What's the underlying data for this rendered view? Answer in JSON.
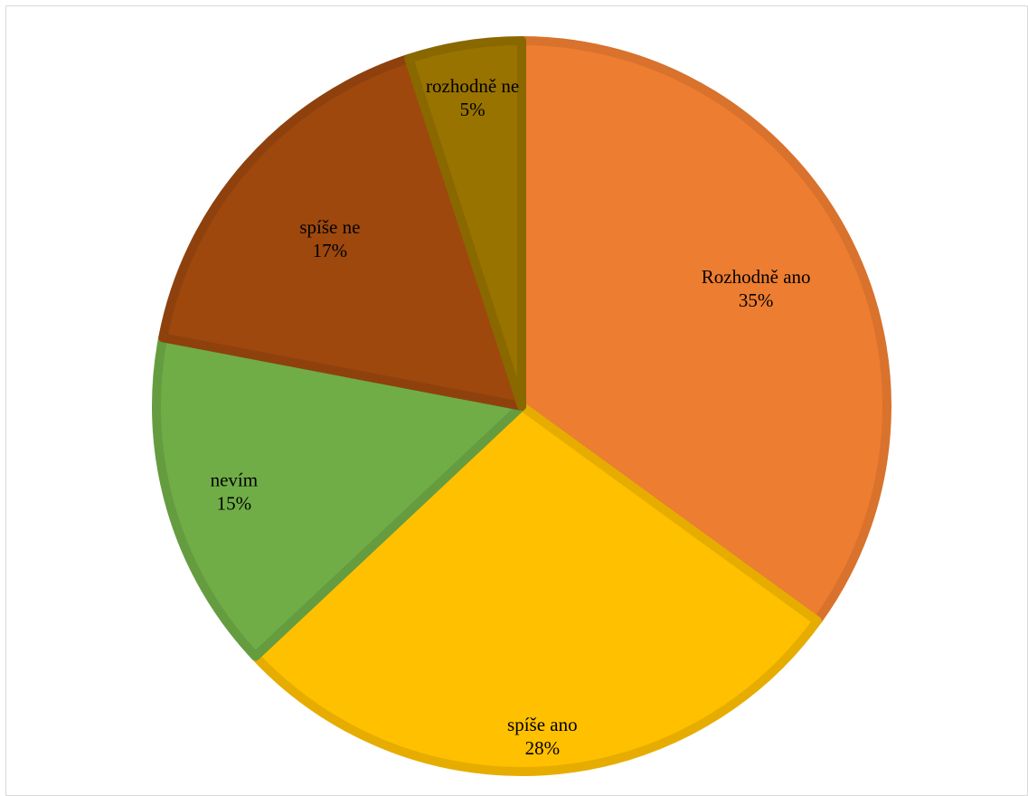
{
  "chart_data": {
    "type": "pie",
    "title": "",
    "categories": [
      "Rozhodně ano",
      "spíše ano",
      "nevím",
      "spíše ne",
      "rozhodně ne"
    ],
    "values": [
      35,
      28,
      15,
      17,
      5
    ],
    "value_labels": [
      "35%",
      "28%",
      "15%",
      "17%",
      "5%"
    ],
    "colors": [
      "#ED7D31",
      "#FFC000",
      "#70AD47",
      "#9E480E",
      "#997300"
    ],
    "border_colors": [
      "#D9722C",
      "#E6AD00",
      "#659C40",
      "#8E410D",
      "#8A6800"
    ],
    "start_angle_deg": 0,
    "direction": "clockwise",
    "legend": "none",
    "data_labels": "inside"
  }
}
